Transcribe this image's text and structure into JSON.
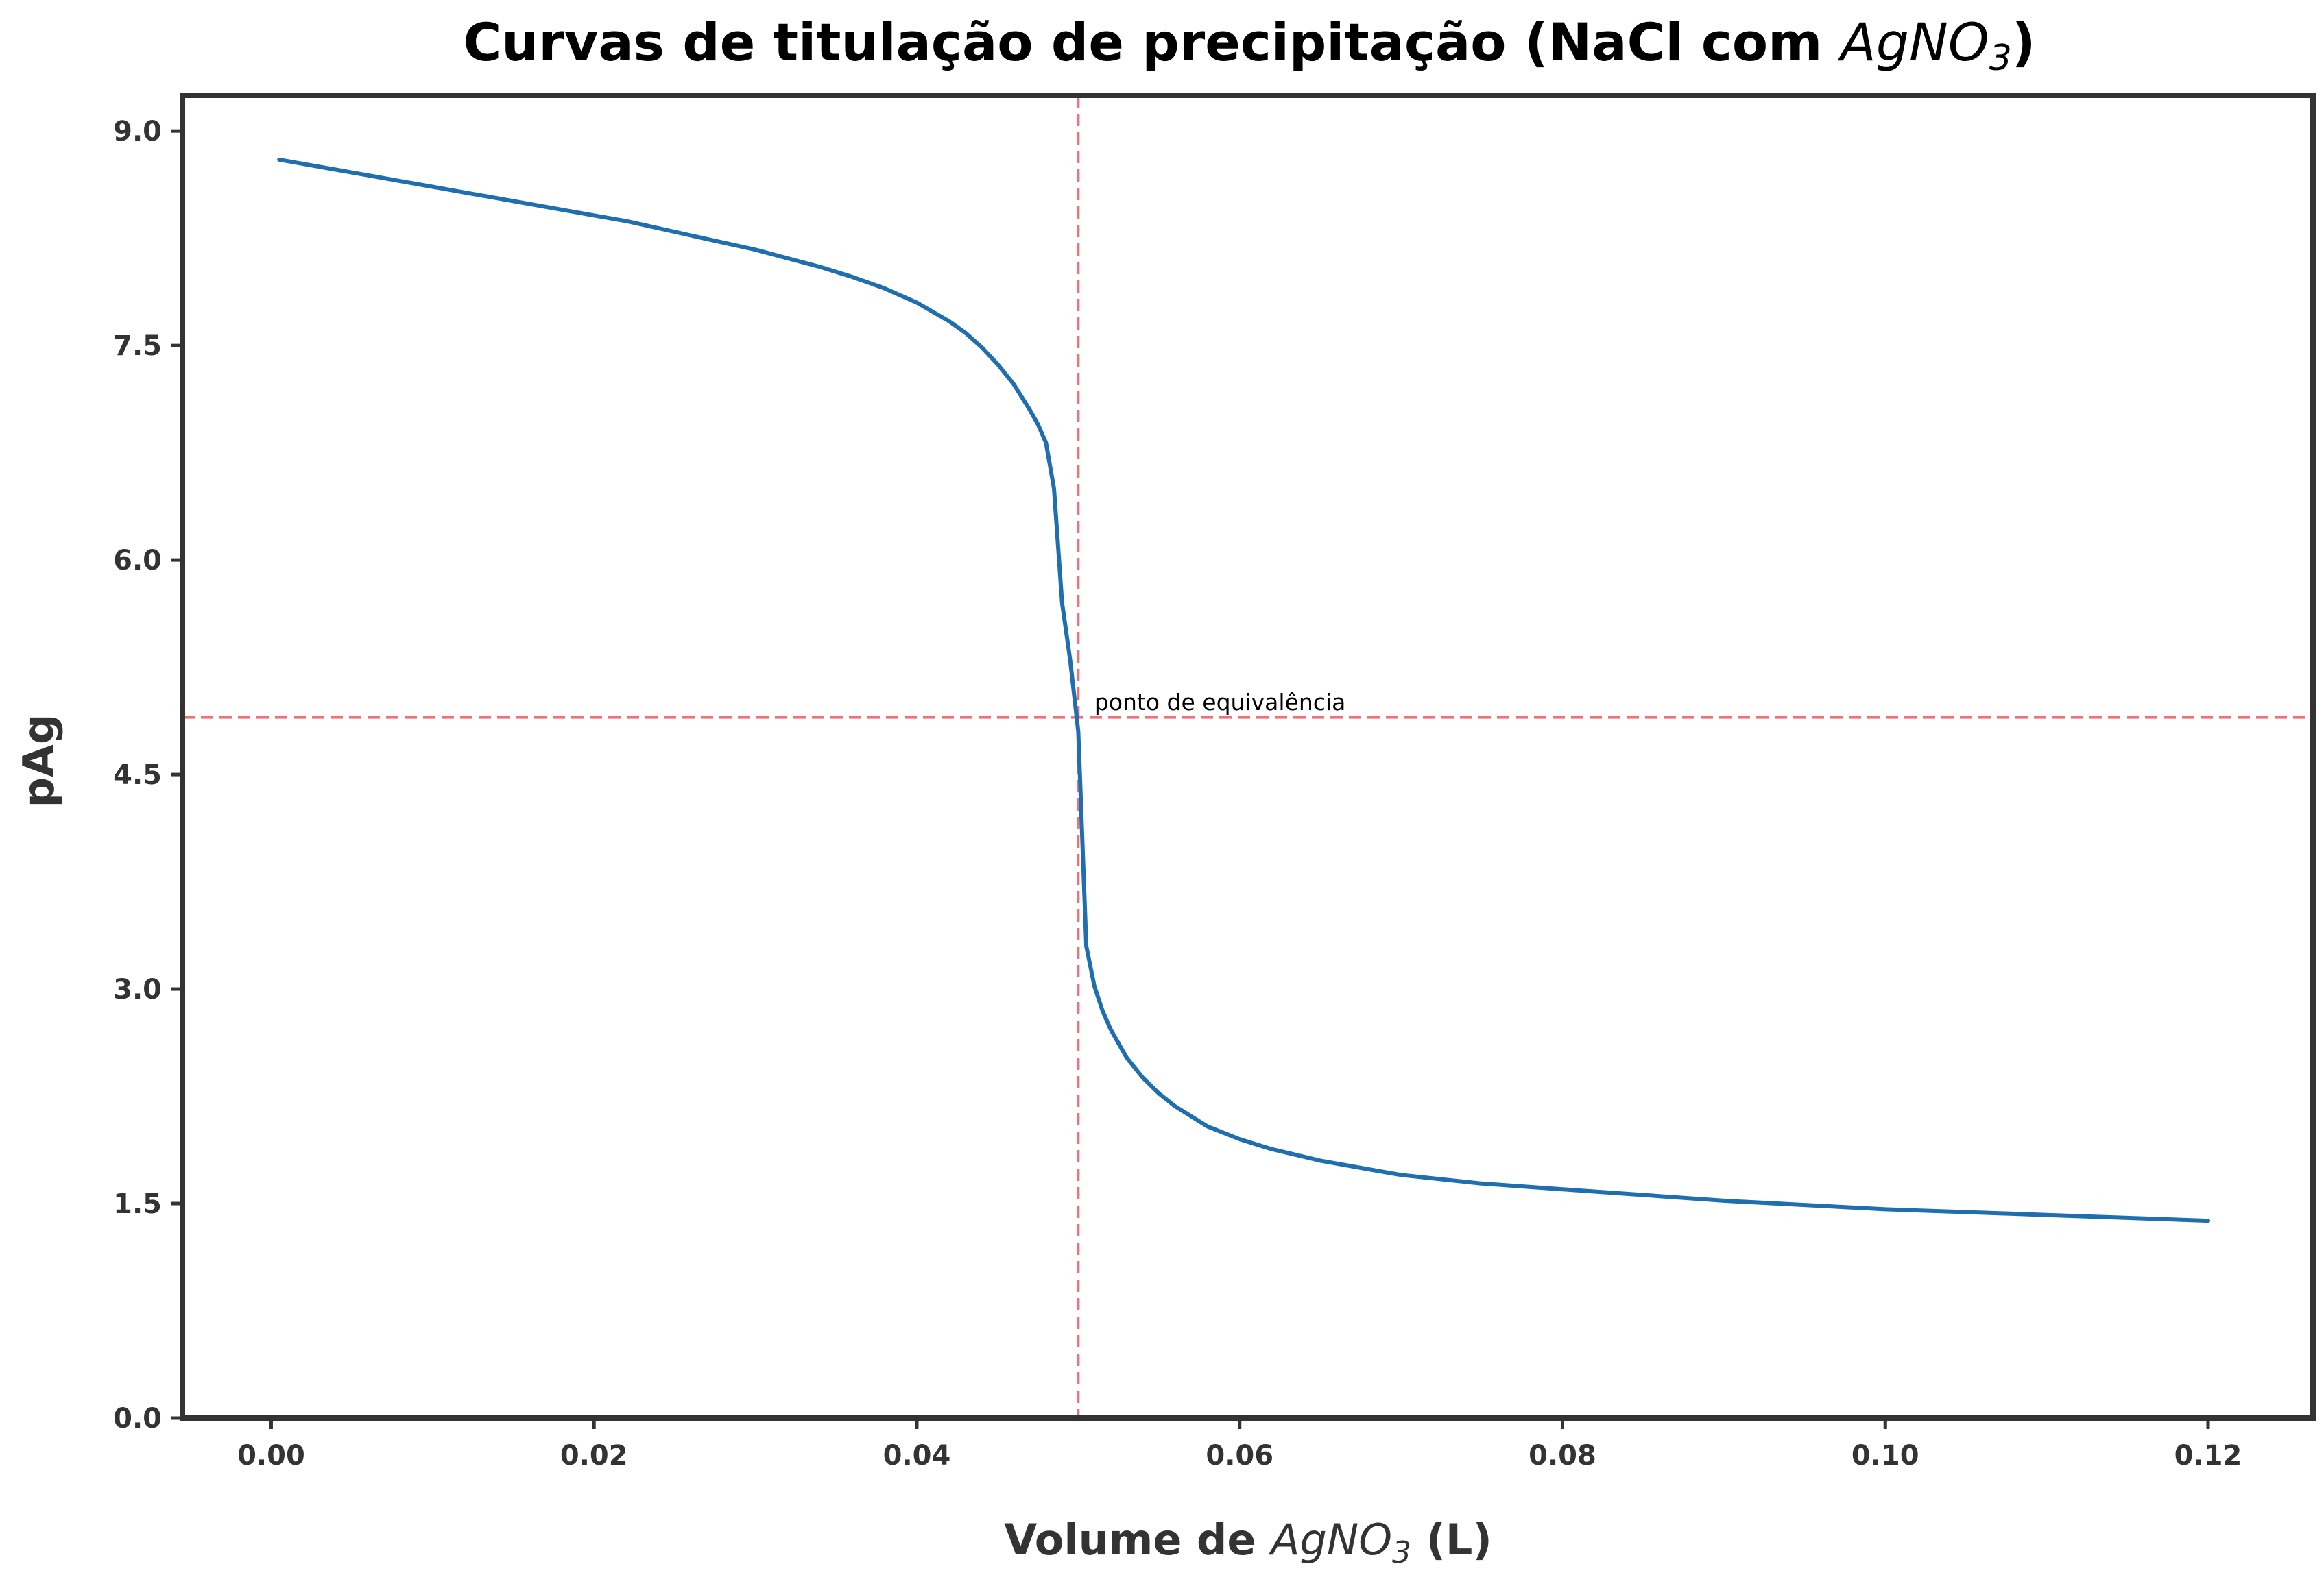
{
  "chart_data": {
    "type": "line",
    "title": {
      "prefix": "Curvas de titulação de precipitação (NaCl com ",
      "formula_main": "AgNO",
      "formula_sub": "3",
      "suffix": ")"
    },
    "xlabel": {
      "prefix": "Volume de ",
      "formula_main": "AgNO",
      "formula_sub": "3",
      "suffix": " (L)"
    },
    "ylabel": "pAg",
    "xlim": [
      -0.0055,
      0.1265
    ],
    "ylim": [
      0.0,
      9.25
    ],
    "xticks": [
      0.0,
      0.02,
      0.04,
      0.06,
      0.08,
      0.1,
      0.12
    ],
    "xtick_labels": [
      "0.00",
      "0.02",
      "0.04",
      "0.06",
      "0.08",
      "0.10",
      "0.12"
    ],
    "yticks": [
      0.0,
      1.5,
      3.0,
      4.5,
      6.0,
      7.5,
      9.0
    ],
    "ytick_labels": [
      "0.0",
      "1.5",
      "3.0",
      "4.5",
      "6.0",
      "7.5",
      "9.0"
    ],
    "grid": false,
    "series": [
      {
        "color": "#1f6fb0",
        "x": [
          0.0005,
          0.002,
          0.004,
          0.006,
          0.008,
          0.01,
          0.012,
          0.014,
          0.016,
          0.018,
          0.02,
          0.022,
          0.024,
          0.026,
          0.028,
          0.03,
          0.032,
          0.034,
          0.036,
          0.038,
          0.04,
          0.042,
          0.043,
          0.044,
          0.045,
          0.046,
          0.047,
          0.0475,
          0.048,
          0.0485,
          0.049,
          0.0495,
          0.05,
          0.0505,
          0.051,
          0.0515,
          0.052,
          0.053,
          0.054,
          0.055,
          0.056,
          0.058,
          0.06,
          0.062,
          0.065,
          0.068,
          0.07,
          0.075,
          0.08,
          0.085,
          0.09,
          0.095,
          0.1,
          0.105,
          0.11,
          0.115,
          0.12
        ],
        "y": [
          8.8,
          8.77,
          8.73,
          8.69,
          8.65,
          8.61,
          8.57,
          8.53,
          8.49,
          8.45,
          8.41,
          8.37,
          8.32,
          8.27,
          8.22,
          8.17,
          8.11,
          8.05,
          7.98,
          7.9,
          7.8,
          7.67,
          7.59,
          7.49,
          7.37,
          7.23,
          7.05,
          6.95,
          6.82,
          6.5,
          5.7,
          5.3,
          4.8,
          3.3,
          3.02,
          2.85,
          2.72,
          2.52,
          2.38,
          2.27,
          2.18,
          2.04,
          1.95,
          1.88,
          1.8,
          1.74,
          1.7,
          1.64,
          1.6,
          1.56,
          1.52,
          1.49,
          1.46,
          1.44,
          1.42,
          1.4,
          1.38
        ]
      }
    ],
    "reference_lines": [
      {
        "orientation": "vertical",
        "value": 0.05,
        "color": "#f07178",
        "style": "dashed"
      },
      {
        "orientation": "horizontal",
        "value": 4.9,
        "color": "#f07178",
        "style": "dashed"
      }
    ],
    "annotation": {
      "text": "ponto de equivalência",
      "x": 0.051,
      "y": 4.95
    }
  }
}
